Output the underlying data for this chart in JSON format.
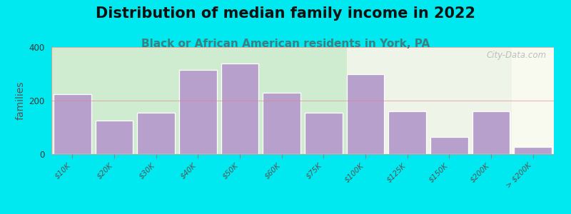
{
  "title": "Distribution of median family income in 2022",
  "subtitle": "Black or African American residents in York, PA",
  "ylabel": "families",
  "categories": [
    "$10K",
    "$20K",
    "$30K",
    "$40K",
    "$50K",
    "$60K",
    "$75K",
    "$100K",
    "$125K",
    "$150K",
    "$200K",
    "> $200K"
  ],
  "values": [
    225,
    125,
    155,
    315,
    340,
    230,
    155,
    300,
    160,
    65,
    160,
    28
  ],
  "bar_color": "#b8a0cc",
  "bar_edgecolor": "#ffffff",
  "background_outer": "#00e8f0",
  "background_plot_left": "#d0ecd0",
  "background_plot_right": "#eef5e8",
  "background_far_right": "#f8faf0",
  "ylim": [
    0,
    400
  ],
  "yticks": [
    0,
    200,
    400
  ],
  "watermark": "City-Data.com",
  "title_fontsize": 15,
  "subtitle_fontsize": 11,
  "subtitle_color": "#3a8080",
  "ylabel_fontsize": 10,
  "title_color": "#111111"
}
